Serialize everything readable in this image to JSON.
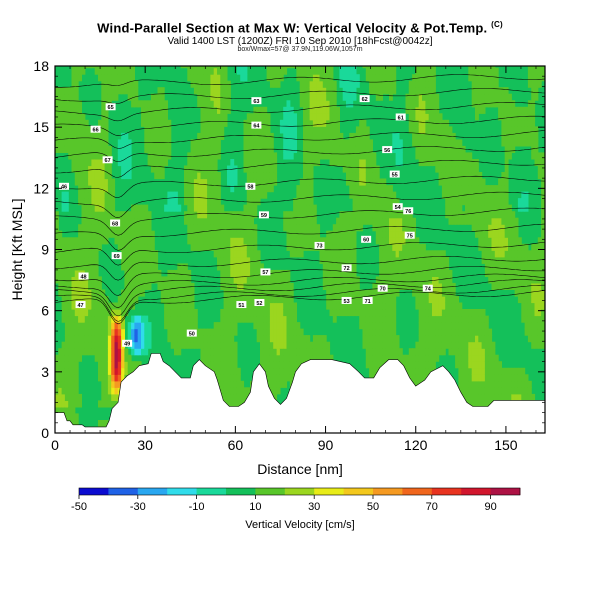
{
  "title": {
    "main": "Wind-Parallel Section at Max W: Vertical Velocity & Pot.Temp.",
    "copyright": "(C)",
    "valid": "Valid 1400 LST (1200Z) FRI 10 Sep 2010 [18hFcst@0042z]",
    "location": "box/Wmax=57@ 37.9N,119.06W,1057m"
  },
  "chart_data": {
    "type": "heatmap",
    "title": "Wind-Parallel Section at Max W: Vertical Velocity & Pot.Temp.",
    "xlabel": "Distance [nm]",
    "ylabel": "Height [Kft MSL]",
    "xlim": [
      0,
      163
    ],
    "ylim": [
      0,
      18
    ],
    "xticks": [
      0,
      30,
      60,
      90,
      120,
      150
    ],
    "yticks": [
      0,
      3,
      6,
      9,
      12,
      15,
      18
    ],
    "colorbar": {
      "label": "Vertical Velocity [cm/s]",
      "tick_labels": [
        "-50",
        "-30",
        "-10",
        "10",
        "30",
        "50",
        "70",
        "90"
      ],
      "ticks": [
        -50,
        -30,
        -10,
        10,
        30,
        50,
        70,
        90
      ],
      "min": -50,
      "max": 100,
      "colors": [
        "#0b0bd0",
        "#1f62e6",
        "#29a7f0",
        "#30dcea",
        "#1ad99a",
        "#14c05a",
        "#58c62a",
        "#9bd61f",
        "#e8ec18",
        "#f3c81d",
        "#f59a21",
        "#f0661d",
        "#e83420",
        "#d1162d",
        "#ad1244"
      ]
    },
    "terrain_profile": [
      [
        0,
        1.0
      ],
      [
        3,
        1.0
      ],
      [
        4,
        0.6
      ],
      [
        5,
        0.6
      ],
      [
        6,
        0.4
      ],
      [
        9,
        0.4
      ],
      [
        10,
        0.3
      ],
      [
        17,
        0.3
      ],
      [
        18,
        0.6
      ],
      [
        19,
        1.2
      ],
      [
        21,
        1.5
      ],
      [
        22,
        2.5
      ],
      [
        24,
        2.8
      ],
      [
        26,
        3.0
      ],
      [
        28,
        3.3
      ],
      [
        31,
        3.4
      ],
      [
        32,
        3.9
      ],
      [
        35,
        3.9
      ],
      [
        36,
        3.5
      ],
      [
        38,
        3.3
      ],
      [
        40,
        3.0
      ],
      [
        42,
        2.7
      ],
      [
        45,
        2.7
      ],
      [
        46,
        3.3
      ],
      [
        48,
        3.6
      ],
      [
        50,
        3.3
      ],
      [
        53,
        3.0
      ],
      [
        54,
        2.6
      ],
      [
        56,
        1.6
      ],
      [
        58,
        1.3
      ],
      [
        61,
        1.3
      ],
      [
        63,
        1.5
      ],
      [
        65,
        2.0
      ],
      [
        66,
        3.0
      ],
      [
        68,
        3.4
      ],
      [
        70,
        3.0
      ],
      [
        71,
        2.3
      ],
      [
        73,
        1.7
      ],
      [
        75,
        1.4
      ],
      [
        77,
        1.7
      ],
      [
        79,
        2.5
      ],
      [
        80,
        3.0
      ],
      [
        82,
        3.4
      ],
      [
        85,
        3.6
      ],
      [
        92,
        3.6
      ],
      [
        98,
        3.4
      ],
      [
        101,
        3.0
      ],
      [
        103,
        2.7
      ],
      [
        106,
        2.7
      ],
      [
        108,
        3.2
      ],
      [
        111,
        3.6
      ],
      [
        114,
        3.6
      ],
      [
        116,
        3.3
      ],
      [
        118,
        2.7
      ],
      [
        120,
        2.3
      ],
      [
        123,
        2.6
      ],
      [
        125,
        3.0
      ],
      [
        129,
        3.3
      ],
      [
        131,
        3.0
      ],
      [
        133,
        2.6
      ],
      [
        135,
        2.0
      ],
      [
        137,
        1.5
      ],
      [
        139,
        1.3
      ],
      [
        144,
        1.3
      ],
      [
        146,
        1.6
      ],
      [
        163,
        1.6
      ]
    ],
    "features": [
      {
        "name": "mountain-wave-updraft",
        "x_center": 20.5,
        "half_width": 1.8,
        "z_bottom": 1.6,
        "z_top": 6.2,
        "w_max": 90
      },
      {
        "name": "lee-downdraft",
        "x_center": 27,
        "half_width": 3.0,
        "z_bottom": 3.5,
        "z_top": 6.0,
        "w_max": -30
      }
    ],
    "isentropes": [
      {
        "label": "50",
        "z_left": 6.4,
        "z_right": 6.9
      },
      {
        "label": "51",
        "z_left": 6.6,
        "z_right": 7.1
      },
      {
        "label": "52",
        "z_left": 6.9,
        "z_right": 7.4
      },
      {
        "label": "53",
        "z_left": 7.2,
        "z_right": 7.7
      },
      {
        "label": "54",
        "z_left": 7.6,
        "z_right": 8.1
      },
      {
        "label": "55",
        "z_left": 8.2,
        "z_right": 8.6
      },
      {
        "label": "56",
        "z_left": 8.9,
        "z_right": 9.3
      },
      {
        "label": "57",
        "z_left": 9.7,
        "z_right": 10.1
      },
      {
        "label": "58",
        "z_left": 10.5,
        "z_right": 10.9
      },
      {
        "label": "59",
        "z_left": 11.3,
        "z_right": 11.7
      },
      {
        "label": "60",
        "z_left": 12.1,
        "z_right": 12.5
      },
      {
        "label": "61",
        "z_left": 12.9,
        "z_right": 13.3
      },
      {
        "label": "62",
        "z_left": 13.6,
        "z_right": 14.0
      },
      {
        "label": "63",
        "z_left": 14.3,
        "z_right": 14.7
      },
      {
        "label": "64",
        "z_left": 15.0,
        "z_right": 15.4
      },
      {
        "label": "65",
        "z_left": 15.7,
        "z_right": 16.1
      },
      {
        "label": "66",
        "z_left": 16.4,
        "z_right": 16.8
      },
      {
        "label": "67",
        "z_left": 17.1,
        "z_right": 17.5
      }
    ],
    "contour_labels": [
      {
        "text": "46",
        "x": 3,
        "z": 12.1
      },
      {
        "text": "47",
        "x": 8.5,
        "z": 6.3
      },
      {
        "text": "48",
        "x": 9.5,
        "z": 7.7
      },
      {
        "text": "49",
        "x": 24,
        "z": 4.4
      },
      {
        "text": "50",
        "x": 45.5,
        "z": 4.9
      },
      {
        "text": "51",
        "x": 62,
        "z": 6.3
      },
      {
        "text": "52",
        "x": 68,
        "z": 6.4
      },
      {
        "text": "53",
        "x": 97,
        "z": 6.5
      },
      {
        "text": "54",
        "x": 114,
        "z": 11.1
      },
      {
        "text": "55",
        "x": 113,
        "z": 12.7
      },
      {
        "text": "56",
        "x": 110.5,
        "z": 13.9
      },
      {
        "text": "57",
        "x": 70,
        "z": 7.9
      },
      {
        "text": "58",
        "x": 65,
        "z": 12.1
      },
      {
        "text": "59",
        "x": 69.5,
        "z": 10.7
      },
      {
        "text": "60",
        "x": 103.5,
        "z": 9.5
      },
      {
        "text": "61",
        "x": 115,
        "z": 15.5
      },
      {
        "text": "62",
        "x": 103,
        "z": 16.4
      },
      {
        "text": "63",
        "x": 67,
        "z": 16.3
      },
      {
        "text": "64",
        "x": 67,
        "z": 15.1
      },
      {
        "text": "65",
        "x": 18.5,
        "z": 16.0
      },
      {
        "text": "66",
        "x": 13.5,
        "z": 14.9
      },
      {
        "text": "67",
        "x": 17.5,
        "z": 13.4
      },
      {
        "text": "68",
        "x": 20,
        "z": 10.3
      },
      {
        "text": "69",
        "x": 20.5,
        "z": 8.7
      },
      {
        "text": "70",
        "x": 109,
        "z": 7.1
      },
      {
        "text": "71",
        "x": 104,
        "z": 6.5
      },
      {
        "text": "72",
        "x": 97,
        "z": 8.1
      },
      {
        "text": "73",
        "x": 88,
        "z": 9.2
      },
      {
        "text": "74",
        "x": 124,
        "z": 7.1
      },
      {
        "text": "75",
        "x": 118,
        "z": 9.7
      },
      {
        "text": "76",
        "x": 117.5,
        "z": 10.9
      }
    ]
  }
}
